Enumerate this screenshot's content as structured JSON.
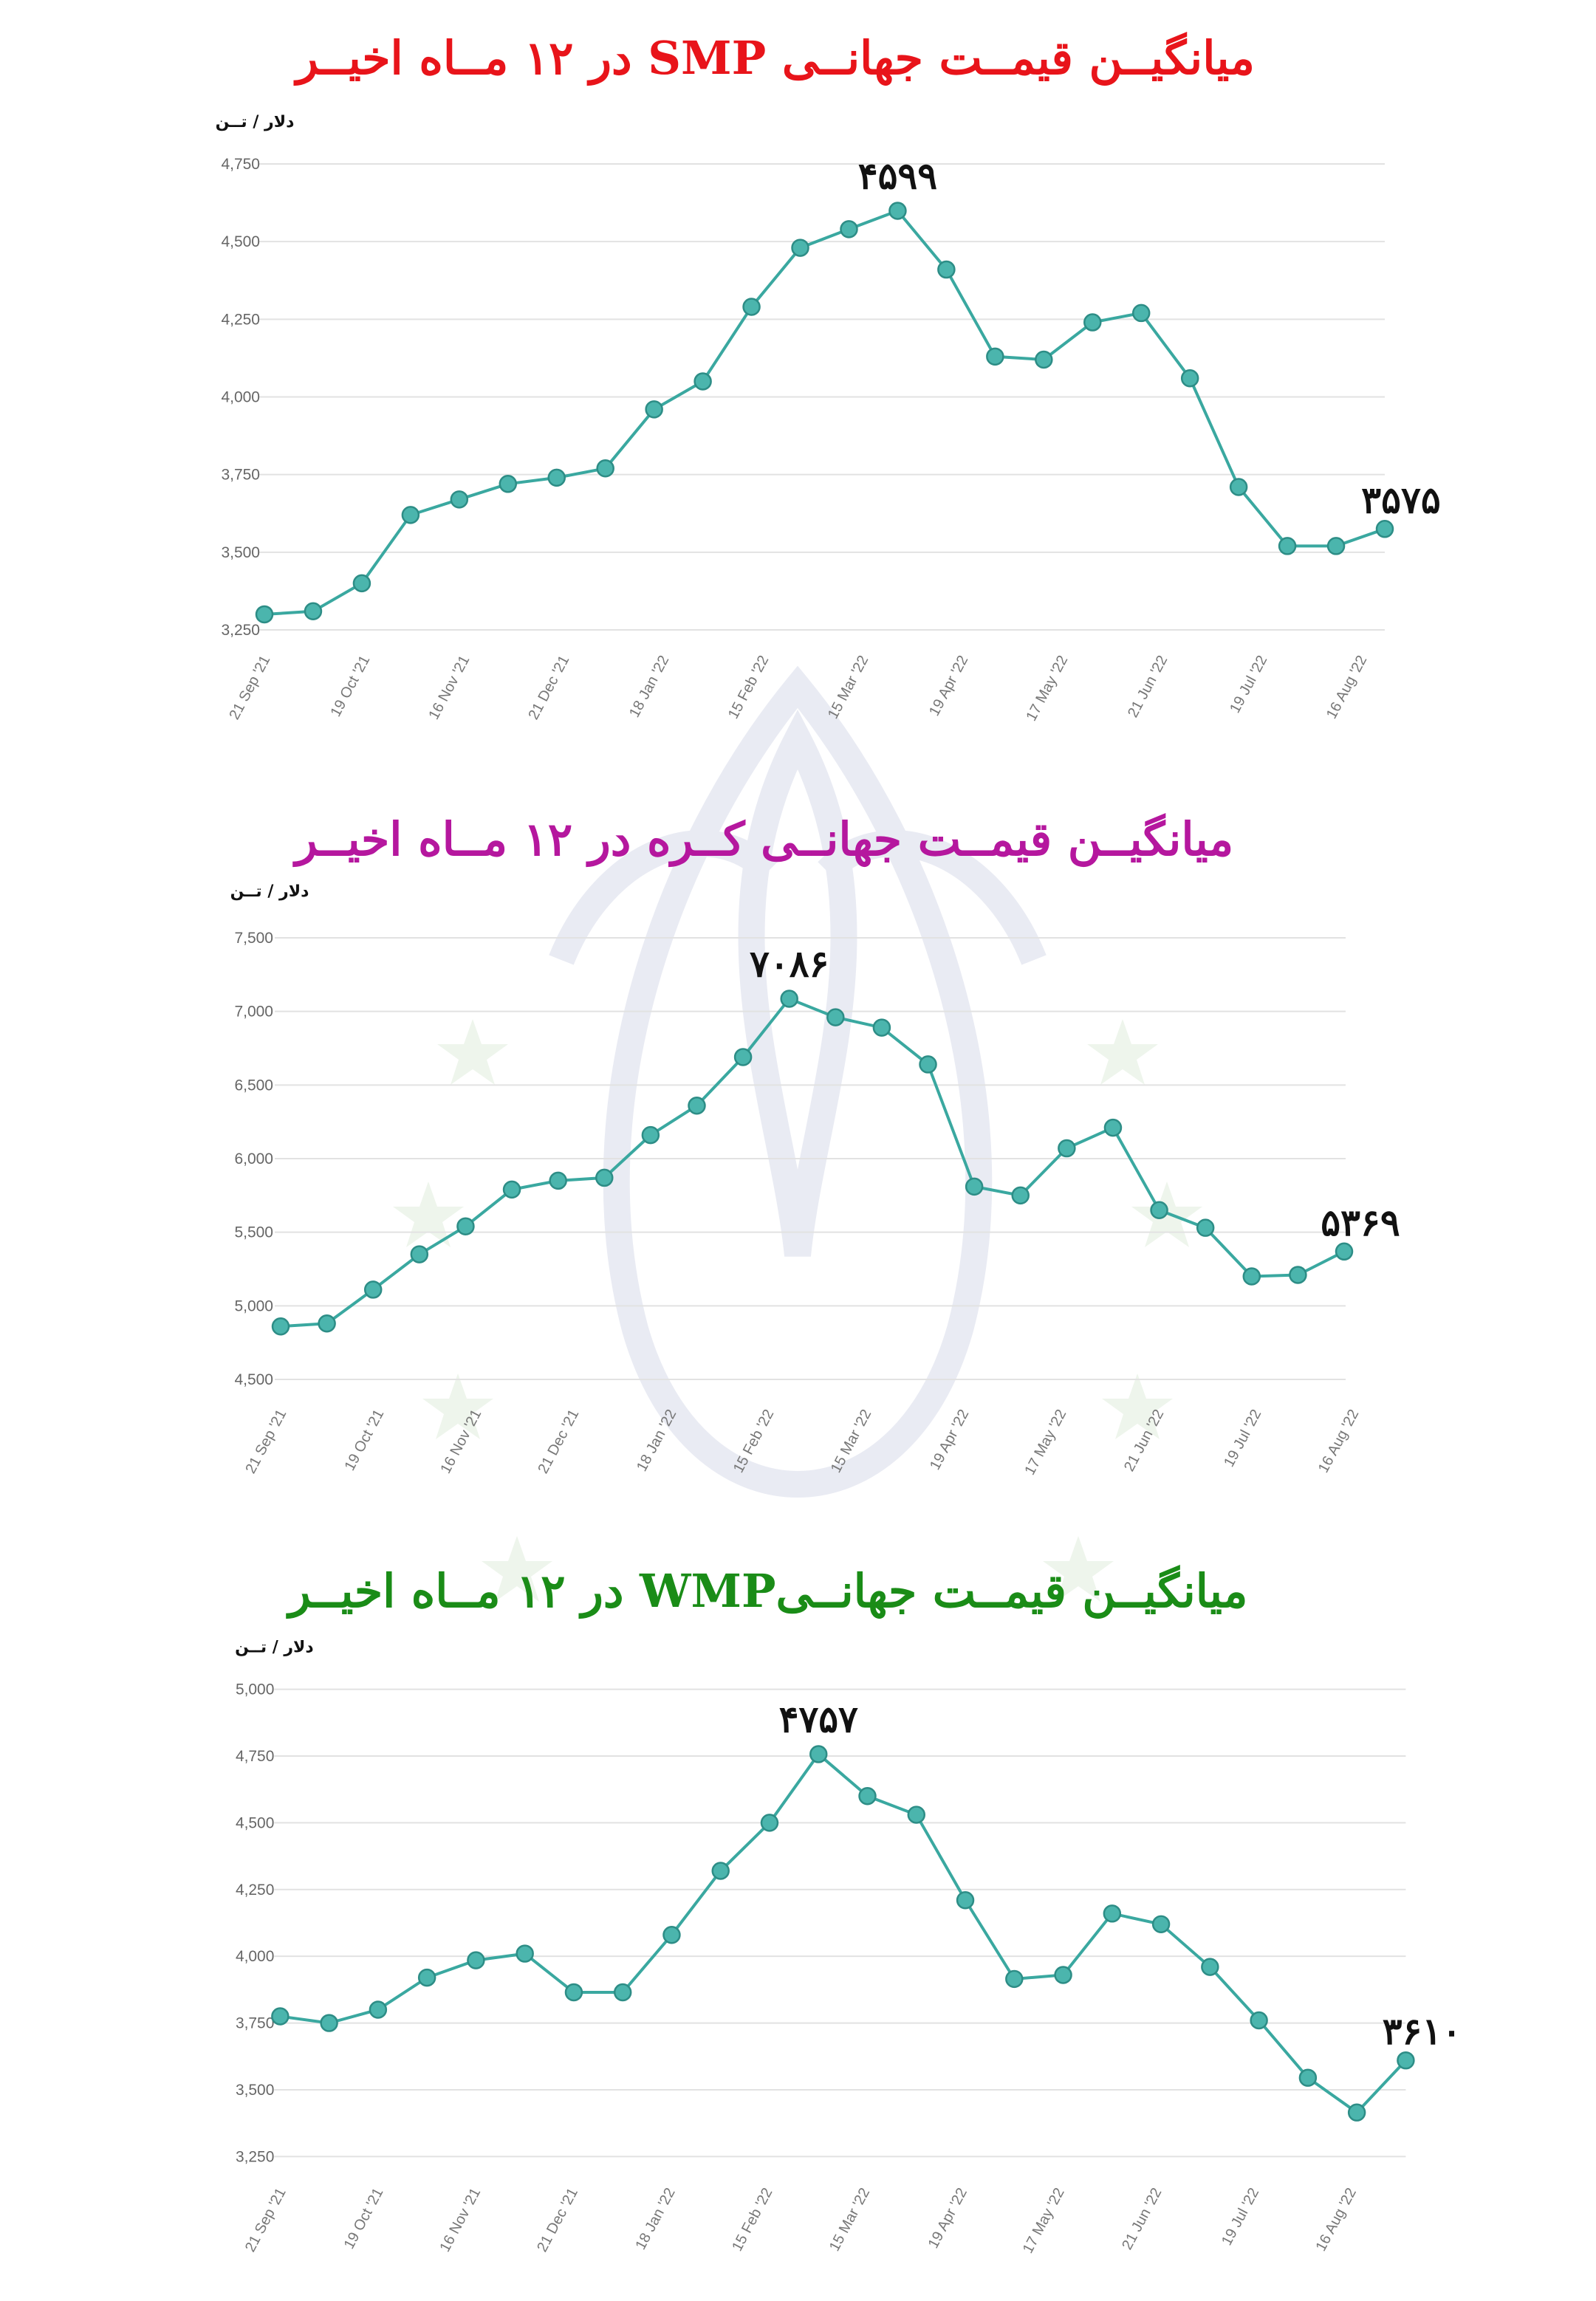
{
  "colors": {
    "line": "#3aa8a0",
    "point": "#4bb5ad",
    "grid": "#e2e2e2"
  },
  "chart_data": [
    {
      "type": "line",
      "title": "میانگیــن قیمــت جهانــی SMP در ۱۲ مــاه اخیــر",
      "title_color": "#e8141a",
      "unit": "دلار / تــن",
      "x_ticks": [
        "21 Sep '21",
        "19 Oct '21",
        "16 Nov '21",
        "21 Dec '21",
        "18 Jan '22",
        "15 Feb '22",
        "15 Mar '22",
        "19 Apr '22",
        "17 May '22",
        "21 Jun '22",
        "19 Jul '22",
        "16 Aug '22"
      ],
      "ylim": [
        3250,
        4750
      ],
      "y_ticks": [
        "3,250",
        "3,500",
        "3,750",
        "4,000",
        "4,250",
        "4,500",
        "4,750"
      ],
      "values": [
        3300,
        3310,
        3400,
        3620,
        3670,
        3720,
        3740,
        3770,
        3960,
        4050,
        4290,
        4480,
        4540,
        4599,
        4410,
        4130,
        4120,
        4240,
        4270,
        4060,
        3710,
        3520,
        3520,
        3575
      ],
      "grid": true,
      "annotations": [
        {
          "index": 13,
          "text": "۴۵۹۹"
        },
        {
          "index": 23,
          "text": "۳۵۷۵"
        }
      ]
    },
    {
      "type": "line",
      "title": "میانگیــن قیمــت  جهانــی کــره در ۱۲ مــاه اخیــر",
      "title_color": "#b5179e",
      "unit": "دلار / تــن",
      "x_ticks": [
        "21 Sep '21",
        "19 Oct '21",
        "16 Nov '21",
        "21 Dec '21",
        "18 Jan '22",
        "15 Feb '22",
        "15 Mar '22",
        "19 Apr '22",
        "17 May '22",
        "21 Jun '22",
        "19 Jul '22",
        "16 Aug '22"
      ],
      "ylim": [
        4500,
        7500
      ],
      "y_ticks": [
        "4,500",
        "5,000",
        "5,500",
        "6,000",
        "6,500",
        "7,000",
        "7,500"
      ],
      "values": [
        4860,
        4880,
        5110,
        5350,
        5540,
        5790,
        5850,
        5870,
        6160,
        6360,
        6690,
        7086,
        6960,
        6890,
        6640,
        5810,
        5750,
        6070,
        6210,
        5650,
        5530,
        5200,
        5210,
        5369
      ],
      "grid": true,
      "annotations": [
        {
          "index": 11,
          "text": "۷۰۸۶"
        },
        {
          "index": 23,
          "text": "۵۳۶۹"
        }
      ]
    },
    {
      "type": "line",
      "title": "میانگیــن قیمــت جهانــیWMP در ۱۲ مــاه اخیــر",
      "title_color": "#1a8c17",
      "unit": "دلار / تــن",
      "x_ticks": [
        "21 Sep '21",
        "19 Oct '21",
        "16 Nov '21",
        "21 Dec '21",
        "18 Jan '22",
        "15 Feb '22",
        "15 Mar '22",
        "19 Apr '22",
        "17 May '22",
        "21 Jun '22",
        "19 Jul '22",
        "16 Aug '22"
      ],
      "ylim": [
        3250,
        5000
      ],
      "y_ticks": [
        "3,250",
        "3,500",
        "3,750",
        "4,000",
        "4,250",
        "4,500",
        "4,750",
        "5,000"
      ],
      "values": [
        3775,
        3750,
        3800,
        3920,
        3985,
        4010,
        3865,
        3865,
        4080,
        4320,
        4500,
        4757,
        4600,
        4530,
        4210,
        3915,
        3930,
        4160,
        4120,
        3960,
        3760,
        3545,
        3415,
        3610
      ],
      "grid": true,
      "annotations": [
        {
          "index": 11,
          "text": "۴۷۵۷"
        },
        {
          "index": 23,
          "text": "۳۶۱۰"
        }
      ]
    }
  ]
}
